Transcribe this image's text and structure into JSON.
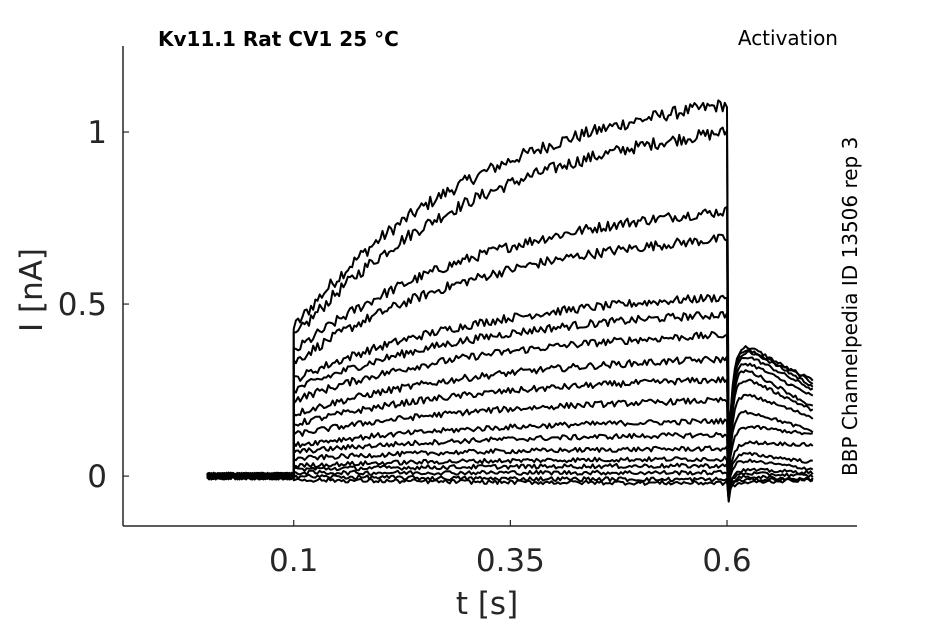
{
  "chart_data": {
    "type": "line",
    "title": "Kv11.1  Rat  CV1  25 °C",
    "subtitle": "Activation",
    "side_note": "BBP Channelpedia ID 13506 rep 3",
    "xlabel": "t [s]",
    "ylabel": "I [nA]",
    "xlim": [
      -0.097,
      0.75
    ],
    "ylim": [
      -0.145,
      1.25
    ],
    "x_ticks": [
      {
        "value": 0.1,
        "label": "0.1"
      },
      {
        "value": 0.35,
        "label": "0.35"
      },
      {
        "value": 0.6,
        "label": "0.6"
      }
    ],
    "y_ticks": [
      {
        "value": 0,
        "label": "0"
      },
      {
        "value": 0.5,
        "label": "0.5"
      },
      {
        "value": 1,
        "label": "1"
      }
    ],
    "grid": false,
    "protocol": {
      "baseline_start": 0.0,
      "step_start": 0.1,
      "step_end": 0.6,
      "tail_end": 0.7
    },
    "series": [
      {
        "jump": 0.43,
        "plateau": 1.08,
        "tail": 0.38,
        "tail_end": 0.28
      },
      {
        "jump": 0.4,
        "plateau": 1.0,
        "tail": 0.4,
        "tail_end": 0.27
      },
      {
        "jump": 0.36,
        "plateau": 0.77,
        "tail": 0.39,
        "tail_end": 0.26
      },
      {
        "jump": 0.33,
        "plateau": 0.69,
        "tail": 0.37,
        "tail_end": 0.25
      },
      {
        "jump": 0.28,
        "plateau": 0.52,
        "tail": 0.35,
        "tail_end": 0.23
      },
      {
        "jump": 0.25,
        "plateau": 0.47,
        "tail": 0.33,
        "tail_end": 0.2
      },
      {
        "jump": 0.22,
        "plateau": 0.41,
        "tail": 0.3,
        "tail_end": 0.19
      },
      {
        "jump": 0.18,
        "plateau": 0.34,
        "tail": 0.25,
        "tail_end": 0.17
      },
      {
        "jump": 0.15,
        "plateau": 0.28,
        "tail": 0.2,
        "tail_end": 0.13
      },
      {
        "jump": 0.12,
        "plateau": 0.22,
        "tail": 0.15,
        "tail_end": 0.12
      },
      {
        "jump": 0.09,
        "plateau": 0.16,
        "tail": 0.1,
        "tail_end": 0.09
      },
      {
        "jump": 0.07,
        "plateau": 0.12,
        "tail": 0.07,
        "tail_end": 0.04
      },
      {
        "jump": 0.05,
        "plateau": 0.08,
        "tail": 0.05,
        "tail_end": 0.02
      },
      {
        "jump": 0.03,
        "plateau": 0.05,
        "tail": 0.02,
        "tail_end": 0.01
      },
      {
        "jump": 0.02,
        "plateau": 0.03,
        "tail": 0.01,
        "tail_end": 0.0
      },
      {
        "jump": 0.01,
        "plateau": 0.01,
        "tail": 0.0,
        "tail_end": -0.01
      },
      {
        "jump": 0.0,
        "plateau": -0.01,
        "tail": -0.01,
        "tail_end": -0.01
      },
      {
        "jump": -0.01,
        "plateau": -0.02,
        "tail": -0.02,
        "tail_end": -0.01
      }
    ]
  }
}
